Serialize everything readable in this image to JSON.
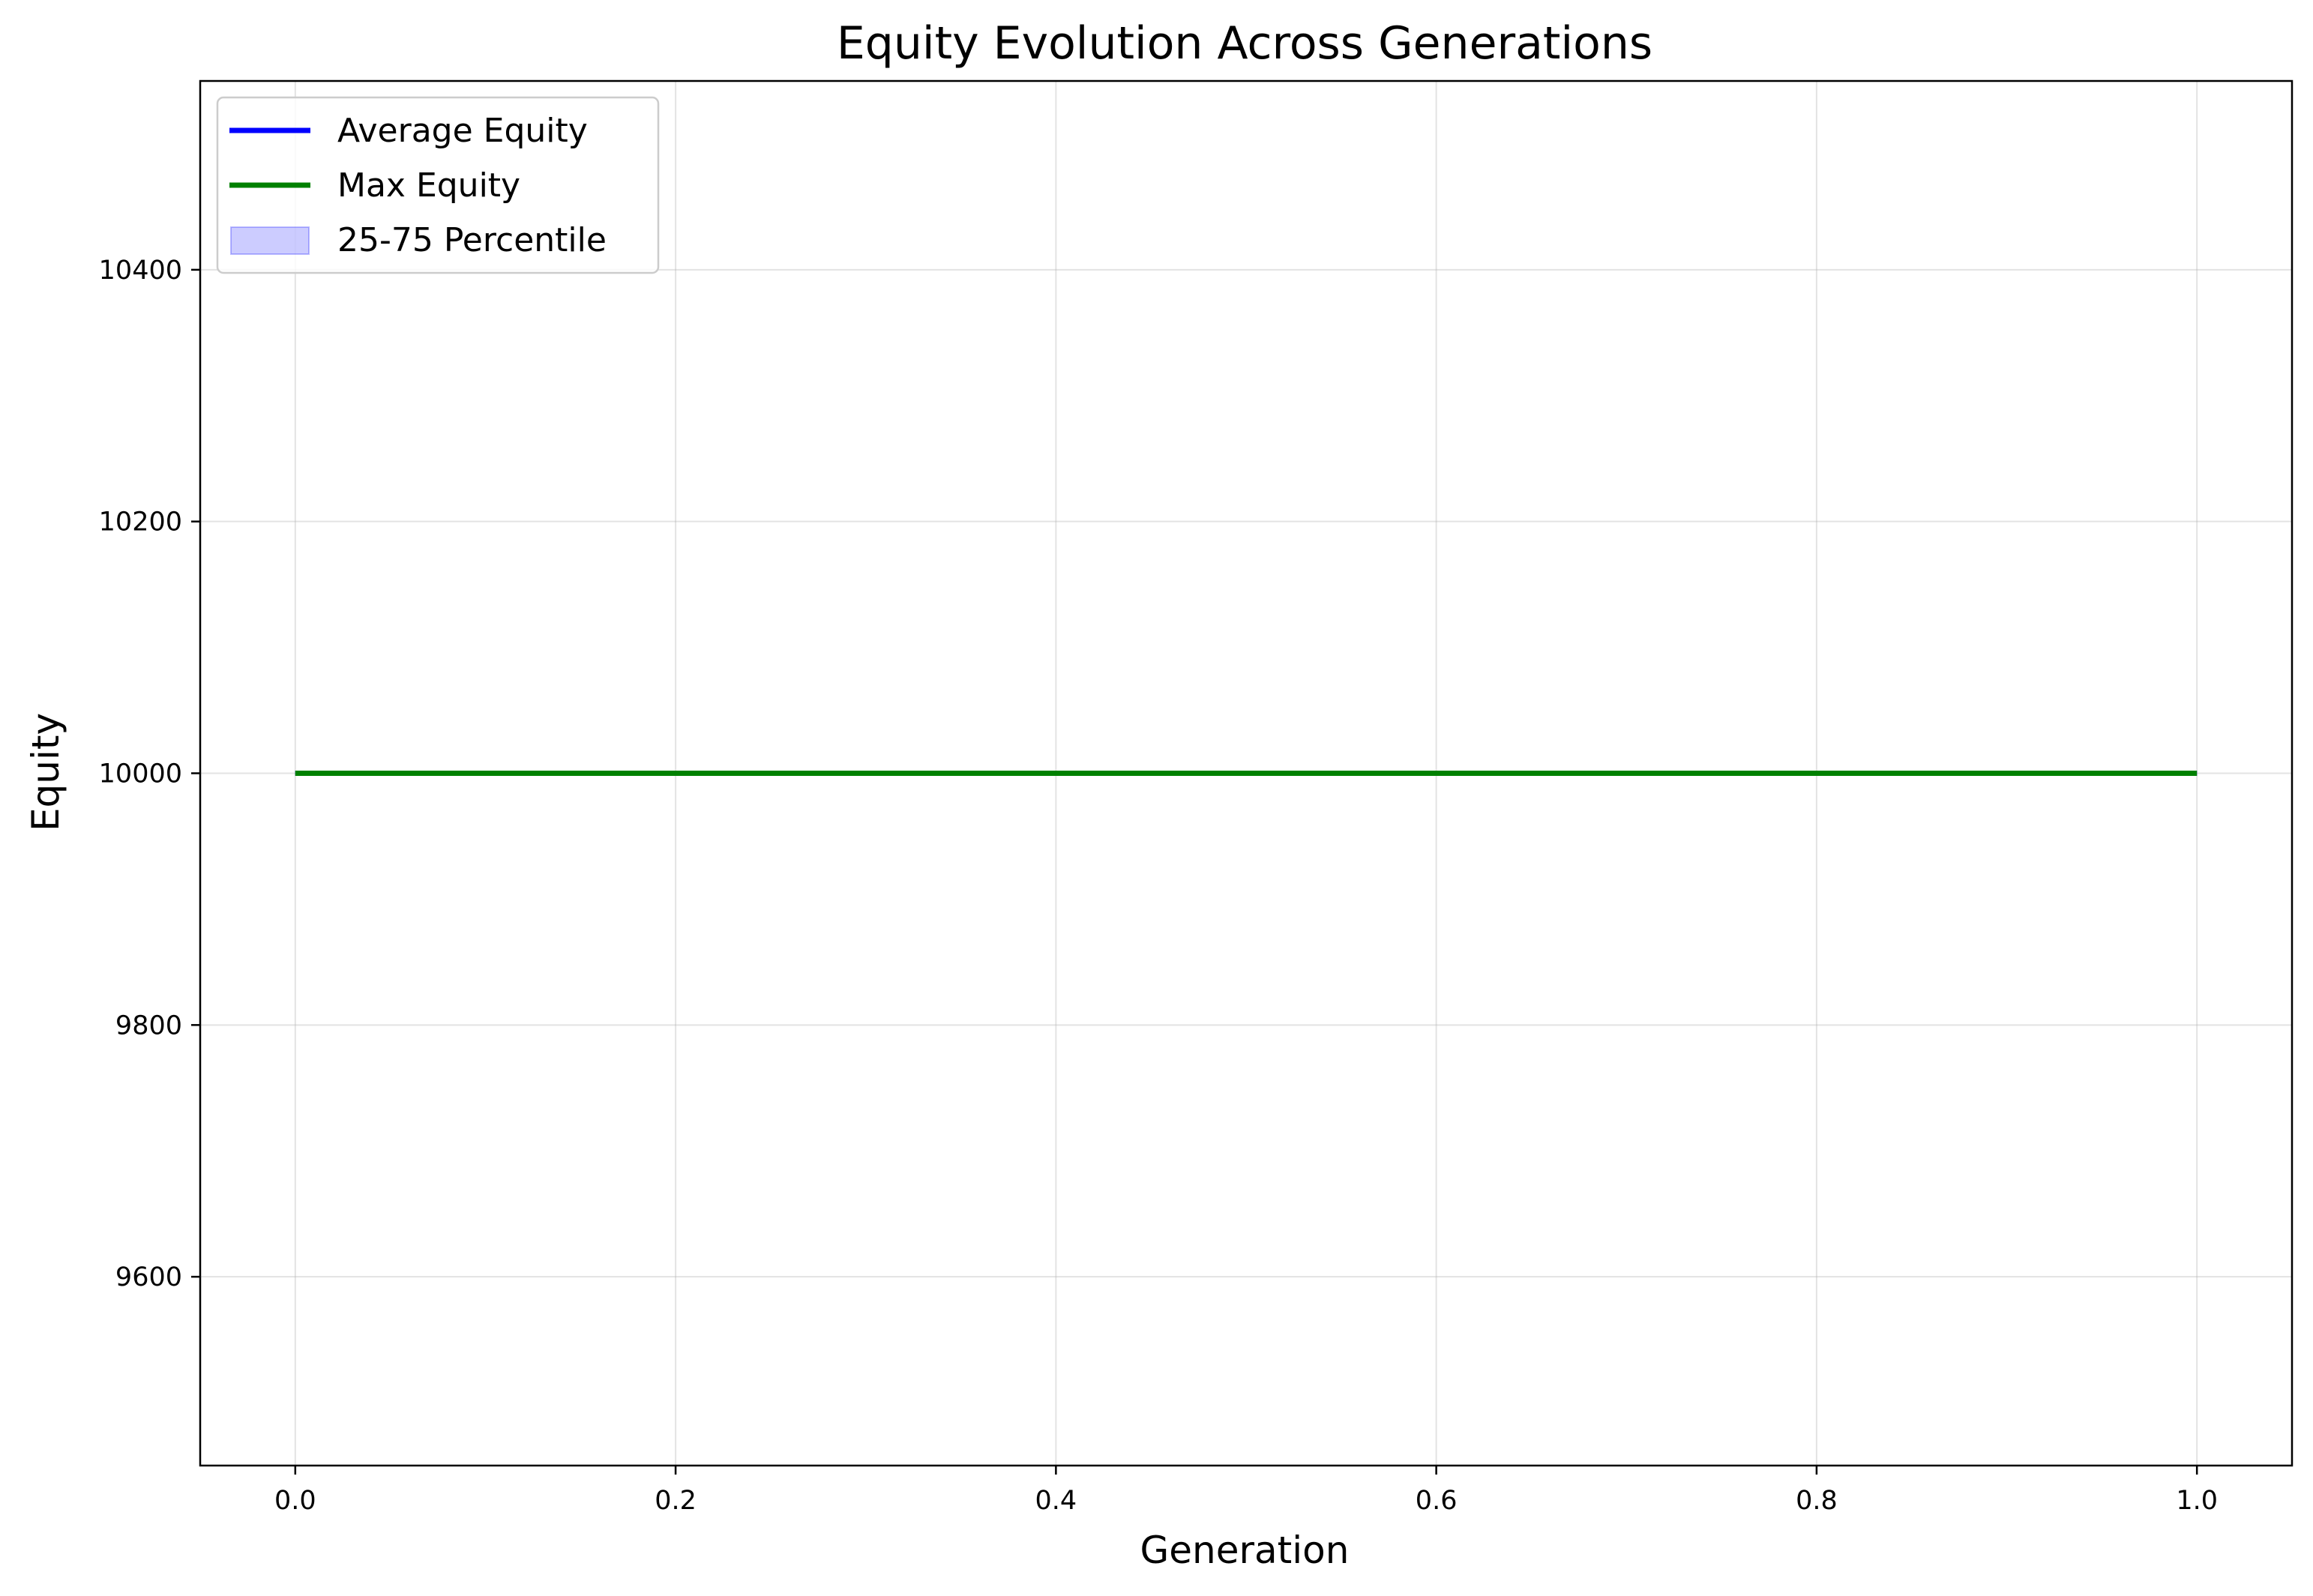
{
  "chart_data": {
    "type": "line",
    "title": "Equity Evolution Across Generations",
    "xlabel": "Generation",
    "ylabel": "Equity",
    "xlim": [
      -0.05,
      1.05
    ],
    "ylim": [
      9450,
      10550
    ],
    "x_ticks": [
      0.0,
      0.2,
      0.4,
      0.6,
      0.8,
      1.0
    ],
    "x_tick_labels": [
      "0.0",
      "0.2",
      "0.4",
      "0.6",
      "0.8",
      "1.0"
    ],
    "y_ticks": [
      9600,
      9800,
      10000,
      10200,
      10400
    ],
    "y_tick_labels": [
      "9600",
      "9800",
      "10000",
      "10200",
      "10400"
    ],
    "grid": true,
    "legend_position": "top-left",
    "x": [
      0.0,
      1.0
    ],
    "series": [
      {
        "name": "Average Equity",
        "values": [
          10000,
          10000
        ],
        "color": "#0000ff",
        "kind": "line"
      },
      {
        "name": "Max Equity",
        "values": [
          10000,
          10000
        ],
        "color": "#008000",
        "kind": "line"
      }
    ],
    "band": {
      "name": "25-75 Percentile",
      "lower": [
        10000,
        10000
      ],
      "upper": [
        10000,
        10000
      ],
      "color": "#0000ff",
      "opacity": 0.2
    }
  }
}
